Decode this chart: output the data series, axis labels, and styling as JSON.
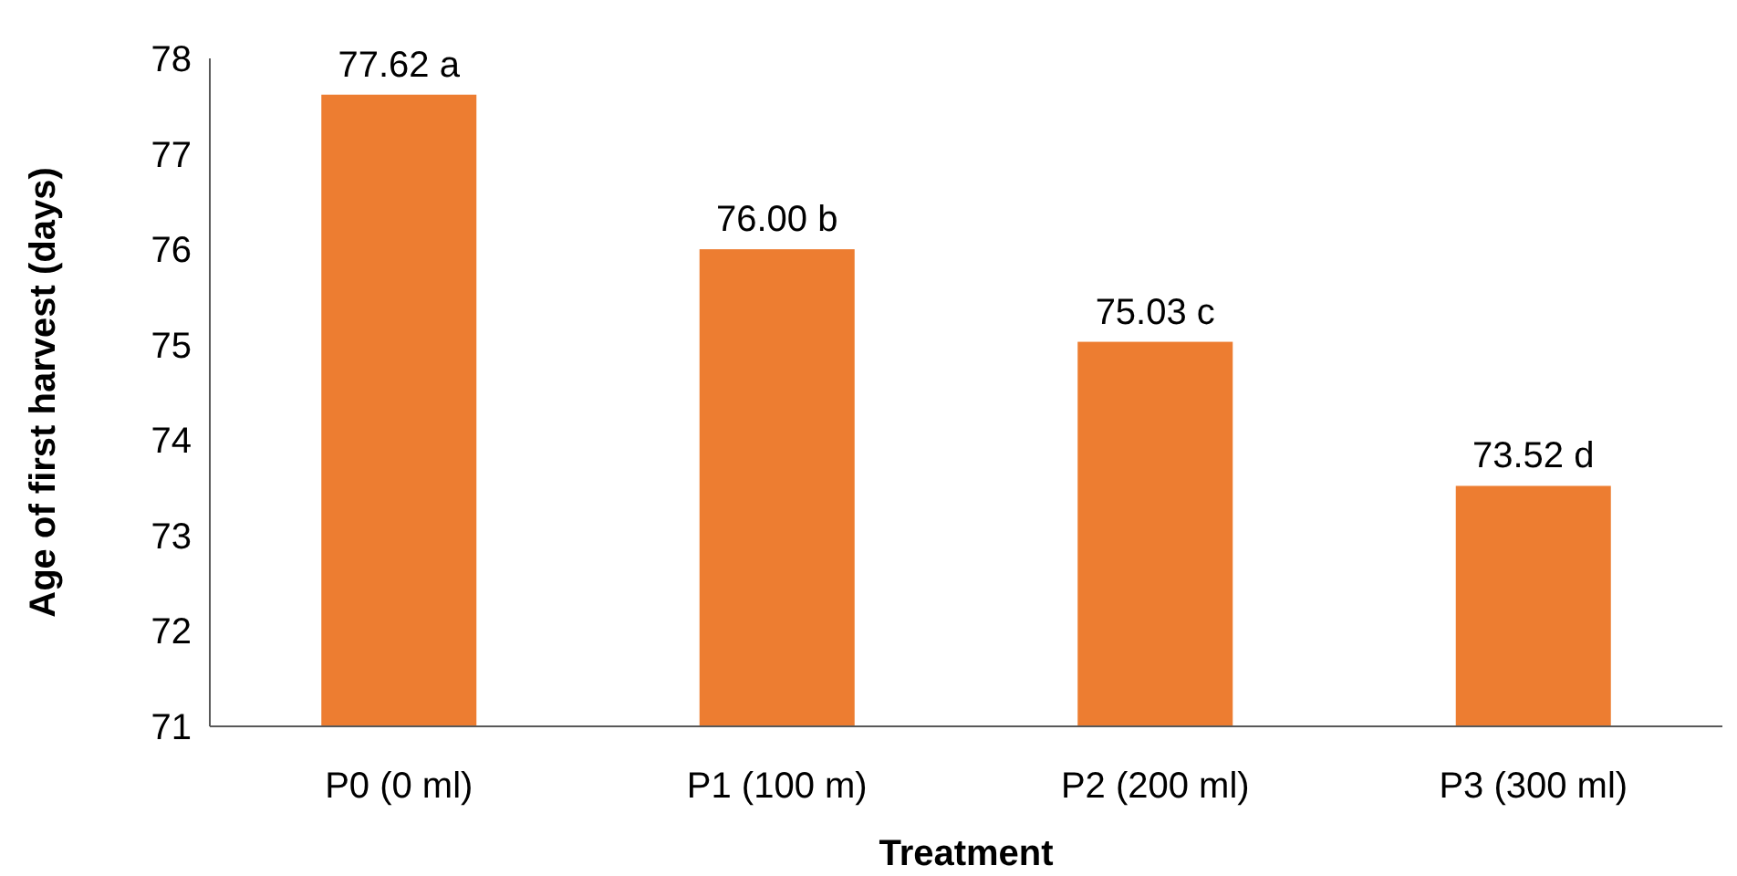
{
  "chart_data": {
    "type": "bar",
    "xlabel": "Treatment",
    "ylabel": "Age of first harvest (days)",
    "categories": [
      "P0 (0 ml)",
      "P1 (100 m)",
      "P2 (200 ml)",
      "P3 (300 ml)"
    ],
    "values": [
      77.62,
      76.0,
      75.03,
      73.52
    ],
    "value_labels": [
      "77.62 a",
      "76.00 b",
      "75.03 c",
      "73.52 d"
    ],
    "color": "#ed7d31",
    "ylim": [
      71,
      78
    ],
    "yticks": [
      71,
      72,
      73,
      74,
      75,
      76,
      77,
      78
    ],
    "grid": false
  }
}
